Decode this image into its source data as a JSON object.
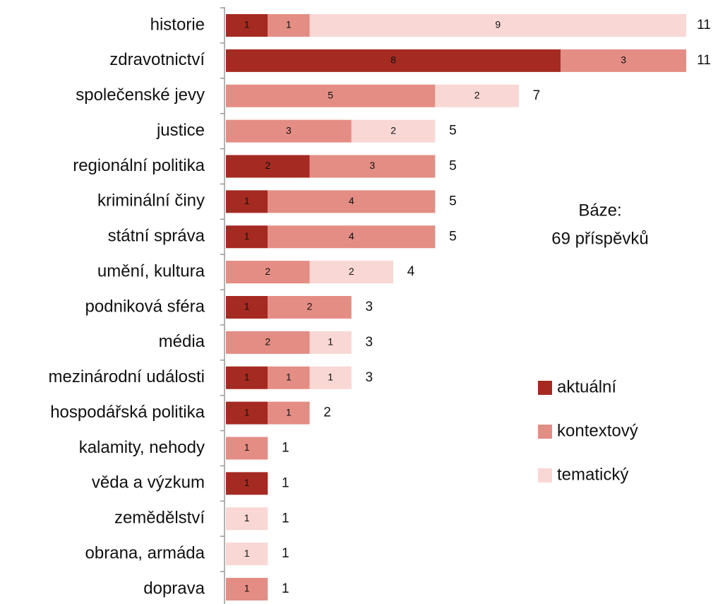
{
  "chart_data": {
    "type": "stacked-barh",
    "categories": [
      "historie",
      "zdravotnictví",
      "společenské jevy",
      "justice",
      "regionální politika",
      "kriminální činy",
      "státní správa",
      "umění, kultura",
      "podniková sféra",
      "média",
      "mezinárodní události",
      "hospodářská politika",
      "kalamity, nehody",
      "věda a výzkum",
      "zemědělství",
      "obrana, armáda",
      "doprava"
    ],
    "series": [
      {
        "name": "aktuální",
        "color": "#a52a22",
        "values": [
          1,
          8,
          null,
          null,
          2,
          1,
          1,
          null,
          1,
          null,
          1,
          1,
          null,
          1,
          null,
          null,
          null
        ]
      },
      {
        "name": "kontextový",
        "color": "#e38d84",
        "values": [
          1,
          3,
          5,
          3,
          3,
          4,
          4,
          2,
          2,
          2,
          1,
          1,
          1,
          null,
          null,
          null,
          1
        ]
      },
      {
        "name": "tematický",
        "color": "#f8d7d4",
        "values": [
          9,
          null,
          2,
          2,
          null,
          null,
          null,
          2,
          null,
          1,
          1,
          null,
          null,
          null,
          1,
          1,
          null
        ]
      }
    ],
    "totals": [
      11,
      11,
      7,
      5,
      5,
      5,
      5,
      4,
      3,
      3,
      3,
      2,
      1,
      1,
      1,
      1,
      1
    ],
    "annotation": [
      "Báze:",
      "69 příspěvků"
    ],
    "legend": "right"
  }
}
